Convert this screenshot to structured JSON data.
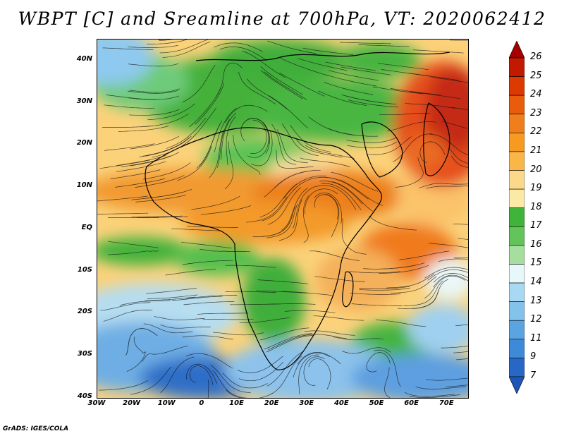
{
  "title": "WBPT [C] and Sreamline at 700hPa, VT: 2020062412",
  "footer": "GrADS: IGES/COLA",
  "map": {
    "lat_ticks": [
      "40N",
      "30N",
      "20N",
      "10N",
      "EQ",
      "10S",
      "20S",
      "30S",
      "40S"
    ],
    "lon_ticks": [
      "30W",
      "20W",
      "10W",
      "0",
      "10E",
      "20E",
      "30E",
      "40E",
      "50E",
      "60E",
      "70E"
    ],
    "lat_range": [
      -40,
      45
    ],
    "lon_range": [
      -30,
      76
    ],
    "variable": "wet-bulb potential temperature",
    "overlay": "streamlines"
  },
  "colorbar": {
    "labels": [
      "26",
      "25",
      "24",
      "23",
      "22",
      "21",
      "20",
      "19",
      "18",
      "17",
      "16",
      "15",
      "14",
      "13",
      "12",
      "11",
      "9",
      "7"
    ],
    "colors": [
      "#a50000",
      "#c21a00",
      "#dc3a00",
      "#e95c0b",
      "#f07e1a",
      "#f69a22",
      "#fbb648",
      "#fcd98a",
      "#fbeaa6",
      "#3fb33a",
      "#62c45a",
      "#a6dea0",
      "#e7f8fb",
      "#a9d8f2",
      "#82c2eb",
      "#5aa4e2",
      "#3d8ad8",
      "#2768c6",
      "#1f55b6"
    ]
  }
}
